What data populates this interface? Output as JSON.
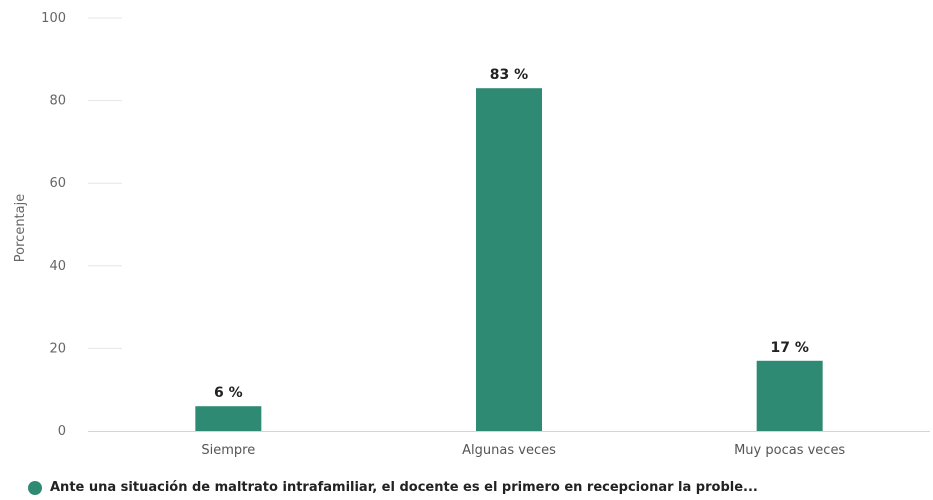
{
  "chart_data": {
    "type": "bar",
    "categories": [
      "Siempre",
      "Algunas veces",
      "Muy pocas veces"
    ],
    "series": [
      {
        "name": "Ante una situación de maltrato intrafamiliar, el docente es el primero en recepcionar la proble...",
        "values": [
          6,
          83,
          17
        ],
        "data_labels": [
          "6 %",
          "83 %",
          "17 %"
        ],
        "color": "#2e8a73"
      }
    ],
    "ylabel": "Porcentaje",
    "ylim": [
      0,
      100
    ],
    "yticks": [
      0,
      20,
      40,
      60,
      80,
      100
    ],
    "grid": true,
    "legend_position": "bottom-left"
  }
}
